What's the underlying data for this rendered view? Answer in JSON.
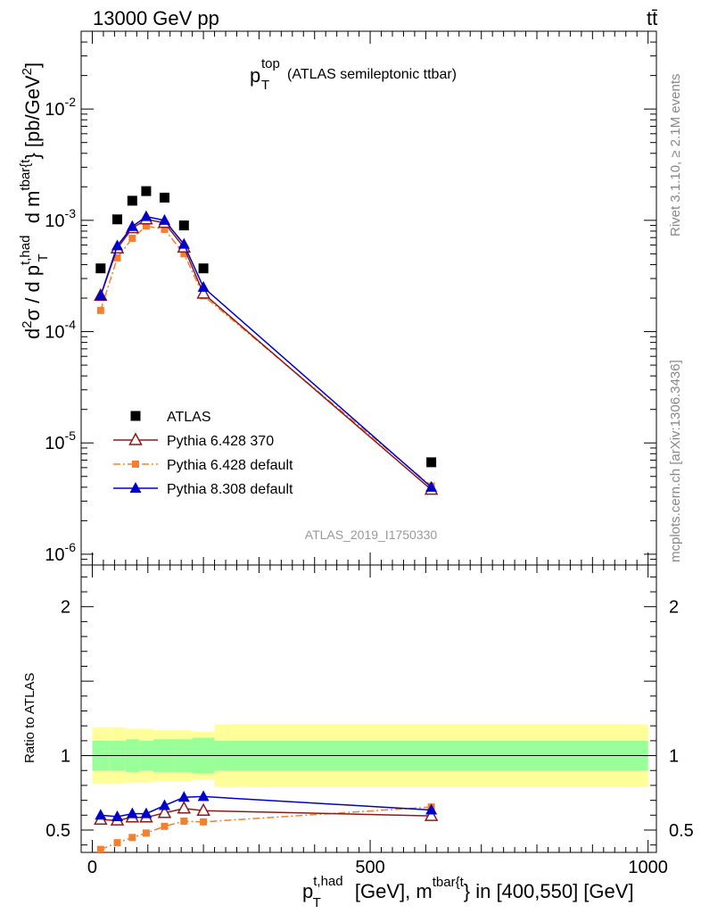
{
  "header": {
    "energy_label": "13000 GeV pp",
    "process_label": "tt̄"
  },
  "side_labels": {
    "rivet": "Rivet 3.1.10, ≥ 2.1M events",
    "mcplots": "mcplots.cern.ch [arXiv:1306.3436]"
  },
  "watermark": "ATLAS_2019_I1750330",
  "chart_data": [
    {
      "type": "line",
      "title": "p_T^top (ATLAS semileptonic ttbar)",
      "title_parts": {
        "p": "p",
        "sup": "top",
        "sub": "T",
        "rest": "(ATLAS semileptonic ttbar)"
      },
      "ylabel": "d²σ / d p_T^{t,had} d m^{tbar{t}} [pb/GeV²]",
      "xlabel": "p_T^{t,had} [GeV], m^{tbar{t}} in [400,550] [GeV]",
      "yscale": "log",
      "xlim": [
        -20,
        1015
      ],
      "ylim": [
        8e-07,
        0.05
      ],
      "y_ticks": [
        "10^-6",
        "10^-5",
        "10^-4",
        "10^-3",
        "10^-2"
      ],
      "legend_position": "middle-left",
      "series": [
        {
          "name": "ATLAS",
          "style": "data",
          "color": "#000000",
          "x": [
            15,
            45,
            72,
            97,
            130,
            165,
            200,
            610
          ],
          "y": [
            0.00037,
            0.00102,
            0.0015,
            0.00183,
            0.0016,
            0.0009,
            0.00037,
            6.7e-06
          ]
        },
        {
          "name": "Pythia 6.428 370",
          "style": "open-triangle",
          "color": "#8b1a1a",
          "x": [
            15,
            45,
            72,
            97,
            130,
            165,
            200,
            610
          ],
          "y": [
            0.00021,
            0.00056,
            0.00085,
            0.00102,
            0.00095,
            0.00057,
            0.00022,
            3.8e-06
          ]
        },
        {
          "name": "Pythia 6.428 default",
          "style": "square-dashed",
          "color": "#f28030",
          "x": [
            15,
            45,
            72,
            97,
            130,
            165,
            200,
            610
          ],
          "y": [
            0.000155,
            0.00046,
            0.00069,
            0.00089,
            0.00083,
            0.0005,
            0.00021,
            4.1e-06
          ]
        },
        {
          "name": "Pythia 8.308 default",
          "style": "filled-triangle",
          "color": "#0000cc",
          "x": [
            15,
            45,
            72,
            97,
            130,
            165,
            200,
            610
          ],
          "y": [
            0.00021,
            0.00059,
            0.00088,
            0.00108,
            0.001,
            0.00061,
            0.00025,
            4e-06
          ]
        }
      ]
    },
    {
      "type": "line",
      "ylabel": "Ratio to ATLAS",
      "ylim": [
        0.35,
        2.28
      ],
      "y_ticks": [
        "0.5",
        "1",
        "2"
      ],
      "x_ticks": [
        "0",
        "500",
        "1000"
      ],
      "reference_line": 1,
      "bands": {
        "bin_edges": [
          0,
          30,
          60,
          85,
          110,
          150,
          180,
          220,
          1000
        ],
        "inner": [
          [
            0.9,
            1.1
          ],
          [
            0.9,
            1.1
          ],
          [
            0.89,
            1.11
          ],
          [
            0.9,
            1.1
          ],
          [
            0.89,
            1.11
          ],
          [
            0.89,
            1.11
          ],
          [
            0.88,
            1.12
          ],
          [
            0.9,
            1.1
          ]
        ],
        "outer": [
          [
            0.81,
            1.19
          ],
          [
            0.81,
            1.19
          ],
          [
            0.82,
            1.18
          ],
          [
            0.82,
            1.18
          ],
          [
            0.83,
            1.17
          ],
          [
            0.83,
            1.17
          ],
          [
            0.84,
            1.16
          ],
          [
            0.79,
            1.21
          ]
        ],
        "inner_color": "#99ff99",
        "outer_color": "#ffff99"
      },
      "series": [
        {
          "name": "Pythia 6.428 370",
          "style": "open-triangle",
          "color": "#8b1a1a",
          "x": [
            15,
            45,
            72,
            97,
            130,
            165,
            200,
            610
          ],
          "y": [
            0.57,
            0.565,
            0.585,
            0.585,
            0.615,
            0.645,
            0.63,
            0.595
          ]
        },
        {
          "name": "Pythia 6.428 default",
          "style": "square-dashed",
          "color": "#f28030",
          "x": [
            15,
            45,
            72,
            97,
            130,
            165,
            200,
            610
          ],
          "y": [
            0.37,
            0.415,
            0.45,
            0.48,
            0.525,
            0.56,
            0.555,
            0.655
          ]
        },
        {
          "name": "Pythia 8.308 default",
          "style": "filled-triangle",
          "color": "#0000cc",
          "x": [
            15,
            45,
            72,
            97,
            130,
            165,
            200,
            610
          ],
          "y": [
            0.6,
            0.59,
            0.61,
            0.61,
            0.665,
            0.72,
            0.725,
            0.635
          ]
        }
      ]
    }
  ]
}
